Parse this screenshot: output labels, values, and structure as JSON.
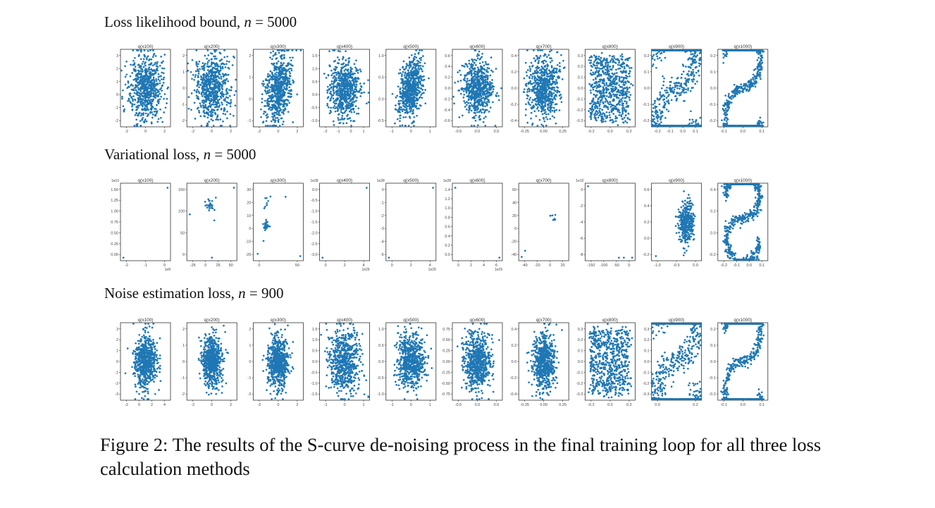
{
  "rows": [
    {
      "id": "r0",
      "title_prefix": "Loss likelihood bound, ",
      "title_var": "n",
      "title_suffix": " = 5000",
      "panels": [
        {
          "label": "q(x100)",
          "x_ticks": [
            "-2",
            "0",
            "2"
          ],
          "y_ticks": [
            "3",
            "2",
            "1",
            "0",
            "-1",
            "-2"
          ],
          "x_offset": "",
          "y_offset": "",
          "shape": "blob",
          "spread": 0.28
        },
        {
          "label": "q(x200)",
          "x_ticks": [
            "-2",
            "0",
            "2"
          ],
          "y_ticks": [
            "2",
            "1",
            "0",
            "-1",
            "-2"
          ],
          "x_offset": "",
          "y_offset": "",
          "shape": "blob",
          "spread": 0.27
        },
        {
          "label": "q(x300)",
          "x_ticks": [
            "-2",
            "0",
            "2"
          ],
          "y_ticks": [
            "2",
            "1",
            "0",
            "-1"
          ],
          "x_offset": "",
          "y_offset": "",
          "shape": "tilted",
          "spread": 0.27
        },
        {
          "label": "q(x400)",
          "x_ticks": [
            "-2",
            "-1",
            "0",
            "1"
          ],
          "y_ticks": [
            "1.5",
            "1.0",
            "0.5",
            "0.0",
            "-0.5",
            "-1.0"
          ],
          "x_offset": "",
          "y_offset": "",
          "shape": "blob",
          "spread": 0.25
        },
        {
          "label": "q(x500)",
          "x_ticks": [
            "-1",
            "0",
            "1"
          ],
          "y_ticks": [
            "1.0",
            "0.5",
            "0.0",
            "-0.5"
          ],
          "x_offset": "",
          "y_offset": "",
          "shape": "tilted",
          "spread": 0.24
        },
        {
          "label": "q(x600)",
          "x_ticks": [
            "-0.5",
            "0.0",
            "0.5"
          ],
          "y_ticks": [
            "0.6",
            "0.4",
            "0.2",
            "0.0",
            "-0.2",
            "-0.4",
            "-0.6"
          ],
          "x_offset": "",
          "y_offset": "",
          "shape": "blob",
          "spread": 0.25
        },
        {
          "label": "q(x700)",
          "x_ticks": [
            "-0.25",
            "0.00",
            "0.25"
          ],
          "y_ticks": [
            "0.4",
            "0.2",
            "0.0",
            "-0.2",
            "-0.4"
          ],
          "x_offset": "",
          "y_offset": "",
          "shape": "blob",
          "spread": 0.26
        },
        {
          "label": "q(x800)",
          "x_ticks": [
            "-0.2",
            "0.0",
            "0.2"
          ],
          "y_ticks": [
            "0.3",
            "0.2",
            "0.1",
            "0.0",
            "-0.1",
            "-0.2",
            "-0.3"
          ],
          "x_offset": "",
          "y_offset": "",
          "shape": "rect",
          "spread": 0.3
        },
        {
          "label": "q(x900)",
          "x_ticks": [
            "-0.2",
            "-0.1",
            "0.0",
            "0.1"
          ],
          "y_ticks": [
            "0.2",
            "0.1",
            "0.0",
            "-0.1",
            "-0.2"
          ],
          "x_offset": "",
          "y_offset": "",
          "shape": "s-thick",
          "spread": 0.3
        },
        {
          "label": "q(x1000)",
          "x_ticks": [
            "-0.1",
            "0.0",
            "0.1"
          ],
          "y_ticks": [
            "0.2",
            "0.1",
            "0.0",
            "-0.1",
            "-0.2"
          ],
          "x_offset": "",
          "y_offset": "",
          "shape": "s-curve",
          "spread": 0.3
        }
      ]
    },
    {
      "id": "r1",
      "title_prefix": "Variational loss, ",
      "title_var": "n",
      "title_suffix": " = 5000",
      "panels": [
        {
          "label": "q(x100)",
          "x_ticks": [
            "-2",
            "-1",
            "0"
          ],
          "y_ticks": [
            "1.50",
            "1.25",
            "1.00",
            "0.75",
            "0.50",
            "0.25",
            "0.00"
          ],
          "x_offset": "1e8",
          "y_offset": "1e10",
          "shape": "corners",
          "spread": 0
        },
        {
          "label": "q(x200)",
          "x_ticks": [
            "-25",
            "0",
            "25",
            "50"
          ],
          "y_ticks": [
            "150",
            "100",
            "50",
            "0"
          ],
          "x_offset": "",
          "y_offset": "",
          "shape": "sparse-mid",
          "spread": 0.05
        },
        {
          "label": "q(x300)",
          "x_ticks": [
            "0",
            "50"
          ],
          "y_ticks": [
            "30",
            "20",
            "10",
            "0",
            "-10",
            "-20"
          ],
          "x_offset": "",
          "y_offset": "",
          "shape": "sparse-left",
          "spread": 0.05
        },
        {
          "label": "q(x400)",
          "x_ticks": [
            "0",
            "2",
            "4"
          ],
          "y_ticks": [
            "0.0",
            "-0.5",
            "-1.0",
            "-1.5",
            "-2.0",
            "-2.5",
            "-3.0"
          ],
          "x_offset": "1e29",
          "y_offset": "1e28",
          "shape": "corners",
          "spread": 0
        },
        {
          "label": "q(x500)",
          "x_ticks": [
            "0",
            "2",
            "4"
          ],
          "y_ticks": [
            "0",
            "-1",
            "-2",
            "-3",
            "-4",
            "-5"
          ],
          "x_offset": "1e29",
          "y_offset": "1e28",
          "shape": "corners",
          "spread": 0
        },
        {
          "label": "q(x600)",
          "x_ticks": [
            "0",
            "2",
            "4",
            "6"
          ],
          "y_ticks": [
            "1.4",
            "1.2",
            "1.0",
            "0.8",
            "0.6",
            "0.4",
            "0.2",
            "0.0"
          ],
          "x_offset": "1e29",
          "y_offset": "1e28",
          "shape": "corners2",
          "spread": 0
        },
        {
          "label": "q(x700)",
          "x_ticks": [
            "-40",
            "-20",
            "0",
            "20"
          ],
          "y_ticks": [
            "60",
            "40",
            "20",
            "0",
            "-20",
            "-40"
          ],
          "x_offset": "",
          "y_offset": "",
          "shape": "sparse-right",
          "spread": 0.05
        },
        {
          "label": "q(x800)",
          "x_ticks": [
            "-150",
            "-100",
            "-50",
            "0"
          ],
          "y_ticks": [
            "0",
            "-2",
            "-4",
            "-6",
            "-8"
          ],
          "x_offset": "",
          "y_offset": "1e10",
          "shape": "top-right",
          "spread": 0
        },
        {
          "label": "q(x900)",
          "x_ticks": [
            "-1.0",
            "-0.5",
            "0.0"
          ],
          "y_ticks": [
            "0.6",
            "0.4",
            "0.2",
            "0.0",
            "-0.2"
          ],
          "x_offset": "",
          "y_offset": "",
          "shape": "blob-right",
          "spread": 0.12
        },
        {
          "label": "q(x1000)",
          "x_ticks": [
            "-0.2",
            "-0.1",
            "0.0",
            "0.1"
          ],
          "y_ticks": [
            "0.4",
            "0.2",
            "0.0",
            "-0.2"
          ],
          "x_offset": "",
          "y_offset": "",
          "shape": "s-small",
          "spread": 0.22
        }
      ]
    },
    {
      "id": "r2",
      "title_prefix": "Noise estimation loss, ",
      "title_var": "n",
      "title_suffix": " = 900",
      "panels": [
        {
          "label": "q(x100)",
          "x_ticks": [
            "-2",
            "0",
            "2",
            "4"
          ],
          "y_ticks": [
            "3",
            "2",
            "1",
            "0",
            "-1",
            "-2",
            "-3"
          ],
          "x_offset": "",
          "y_offset": "",
          "shape": "vblob",
          "spread": 0.22
        },
        {
          "label": "q(x200)",
          "x_ticks": [
            "-2",
            "0",
            "2"
          ],
          "y_ticks": [
            "2",
            "1",
            "0",
            "-1",
            "-2"
          ],
          "x_offset": "",
          "y_offset": "",
          "shape": "vblob",
          "spread": 0.2
        },
        {
          "label": "q(x300)",
          "x_ticks": [
            "-2",
            "0",
            "2"
          ],
          "y_ticks": [
            "2",
            "1",
            "0",
            "-1",
            "-2"
          ],
          "x_offset": "",
          "y_offset": "",
          "shape": "vblob",
          "spread": 0.21
        },
        {
          "label": "q(x400)",
          "x_ticks": [
            "-1",
            "0",
            "1"
          ],
          "y_ticks": [
            "1.5",
            "1.0",
            "0.5",
            "0.0",
            "-0.5",
            "-1.0",
            "-1.5"
          ],
          "x_offset": "",
          "y_offset": "",
          "shape": "blob",
          "spread": 0.27
        },
        {
          "label": "q(x500)",
          "x_ticks": [
            "-1",
            "0",
            "1"
          ],
          "y_ticks": [
            "1.0",
            "0.5",
            "0.0",
            "-0.5",
            "-1.0"
          ],
          "x_offset": "",
          "y_offset": "",
          "shape": "blob",
          "spread": 0.23
        },
        {
          "label": "q(x600)",
          "x_ticks": [
            "-0.5",
            "0.0",
            "0.5"
          ],
          "y_ticks": [
            "0.75",
            "0.50",
            "0.25",
            "0.00",
            "-0.25",
            "-0.50",
            "-0.75"
          ],
          "x_offset": "",
          "y_offset": "",
          "shape": "blob",
          "spread": 0.24
        },
        {
          "label": "q(x700)",
          "x_ticks": [
            "-0.25",
            "0.00",
            "0.25"
          ],
          "y_ticks": [
            "0.4",
            "0.2",
            "0.0",
            "-0.2",
            "-0.4"
          ],
          "x_offset": "",
          "y_offset": "",
          "shape": "vblob",
          "spread": 0.23
        },
        {
          "label": "q(x800)",
          "x_ticks": [
            "-0.2",
            "0.0",
            "0.2"
          ],
          "y_ticks": [
            "0.3",
            "0.2",
            "0.1",
            "0.0",
            "-0.1",
            "-0.2",
            "-0.3"
          ],
          "x_offset": "",
          "y_offset": "",
          "shape": "rect",
          "spread": 0.28
        },
        {
          "label": "q(x900)",
          "x_ticks": [
            "0.0",
            "0.2"
          ],
          "y_ticks": [
            "0.3",
            "0.2",
            "0.1",
            "0.0",
            "-0.1",
            "-0.2",
            "-0.3"
          ],
          "x_offset": "",
          "y_offset": "",
          "shape": "s-thick",
          "spread": 0.3
        },
        {
          "label": "q(x1000)",
          "x_ticks": [
            "-0.1",
            "0.0",
            "0.1"
          ],
          "y_ticks": [
            "0.2",
            "0.1",
            "0.0",
            "-0.1",
            "-0.2"
          ],
          "x_offset": "",
          "y_offset": "",
          "shape": "s-curve",
          "spread": 0.3
        }
      ]
    }
  ],
  "caption": "Figure 2: The results of the S-curve de-noising process in the final training loop for all three loss calculation methods",
  "colors": {
    "points": "#1f77b4",
    "frame": "#333333"
  }
}
